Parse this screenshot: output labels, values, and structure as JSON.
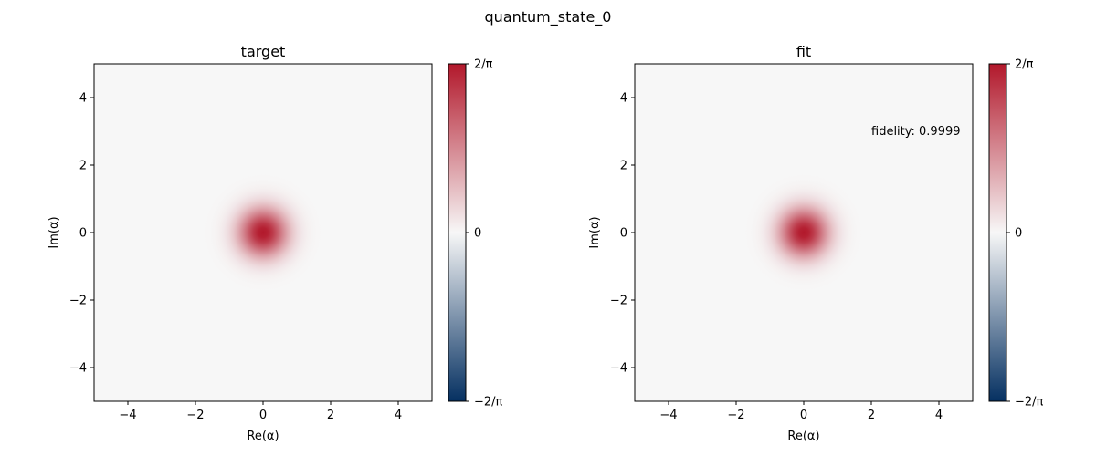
{
  "figure": {
    "suptitle": "quantum_state_0"
  },
  "chart_data": [
    {
      "type": "heatmap",
      "title": "target",
      "xlabel": "Re(α)",
      "ylabel": "Im(α)",
      "xlim": [
        -5,
        5
      ],
      "ylim": [
        -5,
        5
      ],
      "xticks": [
        -4,
        -2,
        0,
        2,
        4
      ],
      "yticks": [
        -4,
        -2,
        0,
        2,
        4
      ],
      "xtick_labels": [
        "−4",
        "−2",
        "0",
        "2",
        "4"
      ],
      "ytick_labels": [
        "−4",
        "−2",
        "0",
        "2",
        "4"
      ],
      "field": {
        "kind": "gaussian",
        "center": [
          0,
          0
        ],
        "peak": 0.6366,
        "sigma": 0.5
      },
      "colorbar": {
        "range": [
          -0.6366,
          0.6366
        ],
        "tick_labels": [
          "2/π",
          "0",
          "−2/π"
        ],
        "colors": {
          "low": "#053061",
          "mid": "#f7f7f7",
          "high": "#b2182b"
        }
      },
      "annotation": ""
    },
    {
      "type": "heatmap",
      "title": "fit",
      "xlabel": "Re(α)",
      "ylabel": "Im(α)",
      "xlim": [
        -5,
        5
      ],
      "ylim": [
        -5,
        5
      ],
      "xticks": [
        -4,
        -2,
        0,
        2,
        4
      ],
      "yticks": [
        -4,
        -2,
        0,
        2,
        4
      ],
      "xtick_labels": [
        "−4",
        "−2",
        "0",
        "2",
        "4"
      ],
      "ytick_labels": [
        "−4",
        "−2",
        "0",
        "2",
        "4"
      ],
      "field": {
        "kind": "gaussian",
        "center": [
          0,
          0
        ],
        "peak": 0.6366,
        "sigma": 0.5
      },
      "colorbar": {
        "range": [
          -0.6366,
          0.6366
        ],
        "tick_labels": [
          "2/π",
          "0",
          "−2/π"
        ],
        "colors": {
          "low": "#053061",
          "mid": "#f7f7f7",
          "high": "#b2182b"
        }
      },
      "annotation": "fidelity: 0.9999"
    }
  ]
}
